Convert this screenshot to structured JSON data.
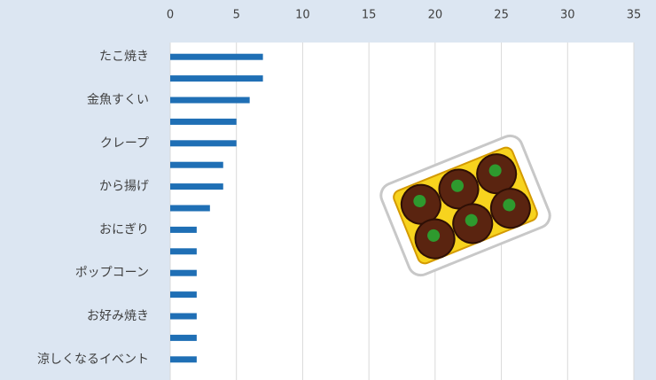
{
  "chart_data": {
    "type": "bar",
    "orientation": "horizontal",
    "categories": [
      "たこ焼き",
      null,
      "金魚すくい",
      null,
      "クレープ",
      null,
      "から揚げ",
      null,
      "おにぎり",
      null,
      "ポップコーン",
      null,
      "お好み焼き",
      null,
      "涼しくなるイベント"
    ],
    "values": [
      7,
      7,
      6,
      5,
      5,
      4,
      4,
      3,
      2,
      2,
      2,
      2,
      2,
      2,
      2
    ],
    "color": "#1f6fb5",
    "xlim": [
      0,
      35
    ],
    "xticks": [
      0,
      5,
      10,
      15,
      20,
      25,
      30,
      35
    ],
    "grid": true
  }
}
